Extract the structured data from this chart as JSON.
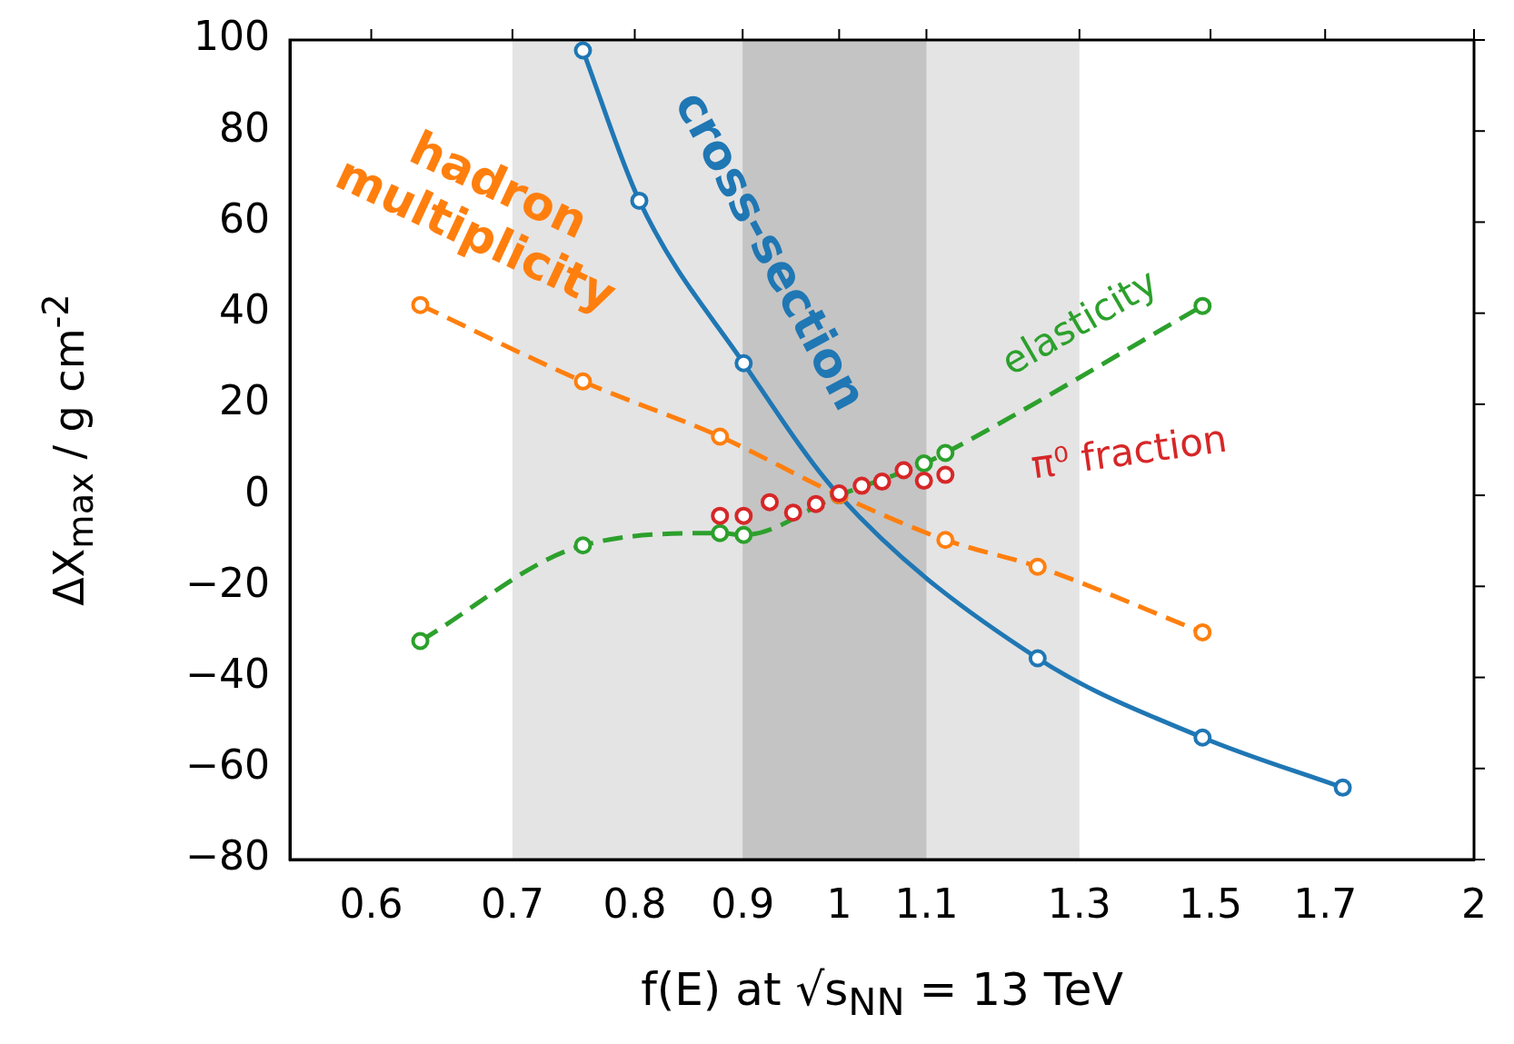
{
  "chart_data": {
    "type": "line",
    "xlabel": "f(E) at √s$_{NN}$ = 13 TeV",
    "ylabel": "ΔX$_{max}$ / g cm$^{-2}$",
    "log": "x",
    "xlim": [
      0.549,
      2
    ],
    "xticks": [
      0.6,
      0.7,
      0.8,
      0.9,
      1,
      1.1,
      1.3,
      1.5,
      1.7,
      2
    ],
    "ylim": [
      -80,
      100
    ],
    "yticks": [
      {
        "value": -80,
        "label": "−80"
      },
      {
        "value": -60,
        "label": "−60"
      },
      {
        "value": -40,
        "label": "−40"
      },
      {
        "value": -20,
        "label": "−20"
      },
      0,
      20,
      40,
      60,
      80,
      100
    ],
    "grid": false,
    "legend": false,
    "marker": "circle",
    "bands": [
      {
        "axis": "x",
        "from": 0.7,
        "to": 1.3,
        "color": "#e4e4e4"
      },
      {
        "axis": "x",
        "from": 0.9,
        "to": 1.1,
        "color": "#c4c4c4"
      }
    ],
    "series": [
      {
        "name": "hadron multiplicity",
        "color": "#ff7f0e",
        "line_style": "dashed",
        "x": [
          0.633,
          0.756,
          0.878,
          1,
          1.123,
          1.242,
          1.487
        ],
        "values": [
          41.8,
          25,
          12.9,
          0,
          -9.8,
          -15.7,
          -30.1
        ]
      },
      {
        "name": "cross-section",
        "color": "#1f77b4",
        "line_style": "solid",
        "x": [
          0.756,
          0.804,
          0.901,
          1,
          1.242,
          1.487,
          1.733
        ],
        "values": [
          97.7,
          64.7,
          29,
          0,
          -35.8,
          -53.2,
          -64.2
        ]
      },
      {
        "name": "elasticity",
        "color": "#2ca02c",
        "line_style": "dashed",
        "x": [
          0.633,
          0.756,
          0.878,
          0.901,
          1,
          1.097,
          1.123,
          1.487
        ],
        "values": [
          -32,
          -11,
          -8.3,
          -8.7,
          0,
          7,
          9.3,
          41.6
        ]
      },
      {
        "name": "π⁰ fraction",
        "color": "#d62728",
        "type": "scatter",
        "x": [
          0.878,
          0.901,
          0.927,
          0.951,
          0.975,
          1,
          1.025,
          1.048,
          1.073,
          1.097,
          1.123
        ],
        "values": [
          -4.5,
          -4.5,
          -1.5,
          -3.8,
          -1.9,
          0.4,
          2.1,
          3,
          5.5,
          3.2,
          4.5
        ]
      }
    ]
  }
}
